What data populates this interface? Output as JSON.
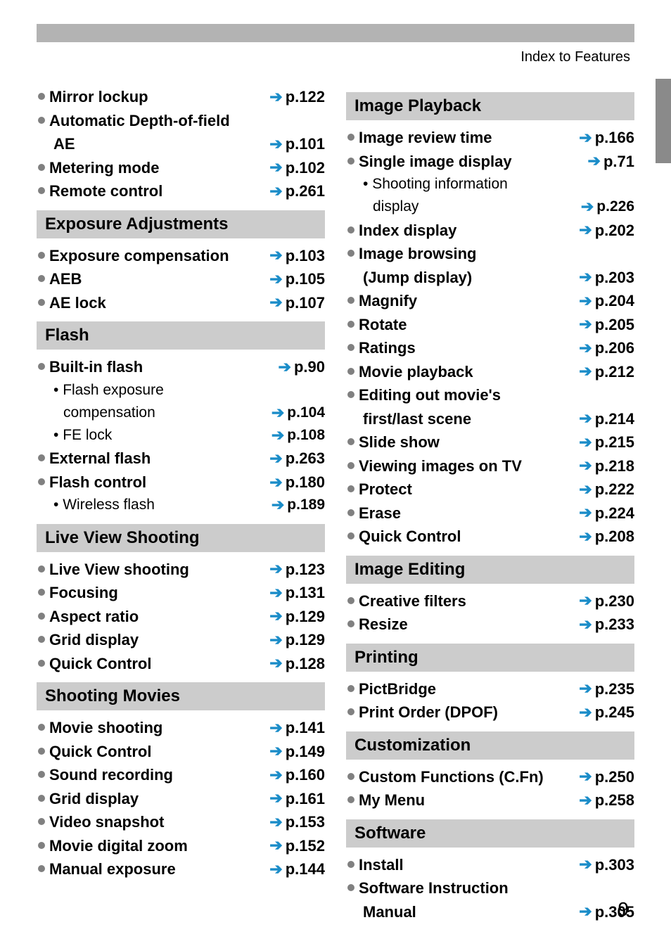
{
  "header": {
    "title": "Index to Features"
  },
  "page_number": "9",
  "colors": {
    "bar": "#b3b3b3",
    "heading_bg": "#cccccc",
    "bullet": "#808080",
    "arrow": "#1a8cc8",
    "side_tab": "#8a8a8a"
  },
  "left_column": [
    {
      "type": "item",
      "label": "Mirror lockup",
      "page": "p.122"
    },
    {
      "type": "item",
      "label": "Automatic Depth-of-field",
      "page": null
    },
    {
      "type": "continue",
      "label": "AE",
      "page": "p.101"
    },
    {
      "type": "item",
      "label": "Metering mode",
      "page": "p.102"
    },
    {
      "type": "item",
      "label": "Remote control",
      "page": "p.261"
    },
    {
      "type": "heading",
      "label": "Exposure Adjustments"
    },
    {
      "type": "item",
      "label": "Exposure compensation",
      "page": "p.103"
    },
    {
      "type": "item",
      "label": "AEB",
      "page": "p.105"
    },
    {
      "type": "item",
      "label": "AE lock",
      "page": "p.107"
    },
    {
      "type": "heading",
      "label": "Flash"
    },
    {
      "type": "item",
      "label": "Built-in flash",
      "page": "p.90"
    },
    {
      "type": "sub",
      "label": "Flash exposure",
      "page": null,
      "dotted": true
    },
    {
      "type": "sub",
      "label": "compensation",
      "page": "p.104",
      "dotted": false,
      "extra_indent": true
    },
    {
      "type": "sub",
      "label": "FE lock",
      "page": "p.108",
      "dotted": true
    },
    {
      "type": "item",
      "label": "External flash",
      "page": "p.263"
    },
    {
      "type": "item",
      "label": "Flash control",
      "page": "p.180"
    },
    {
      "type": "sub",
      "label": "Wireless flash",
      "page": "p.189",
      "dotted": true
    },
    {
      "type": "heading",
      "label": "Live View Shooting"
    },
    {
      "type": "item",
      "label": "Live View shooting",
      "page": "p.123"
    },
    {
      "type": "item",
      "label": "Focusing",
      "page": "p.131"
    },
    {
      "type": "item",
      "label": "Aspect ratio",
      "page": "p.129"
    },
    {
      "type": "item",
      "label": "Grid display",
      "page": "p.129"
    },
    {
      "type": "item",
      "label": "Quick Control",
      "page": "p.128"
    },
    {
      "type": "heading",
      "label": "Shooting Movies"
    },
    {
      "type": "item",
      "label": "Movie shooting",
      "page": "p.141"
    },
    {
      "type": "item",
      "label": "Quick Control",
      "page": "p.149"
    },
    {
      "type": "item",
      "label": "Sound recording",
      "page": "p.160"
    },
    {
      "type": "item",
      "label": "Grid display",
      "page": "p.161"
    },
    {
      "type": "item",
      "label": "Video snapshot",
      "page": "p.153"
    },
    {
      "type": "item",
      "label": "Movie digital zoom",
      "page": "p.152"
    },
    {
      "type": "item",
      "label": "Manual exposure",
      "page": "p.144"
    }
  ],
  "right_column": [
    {
      "type": "heading",
      "label": "Image Playback"
    },
    {
      "type": "item",
      "label": "Image review time",
      "page": "p.166"
    },
    {
      "type": "item",
      "label": "Single image display",
      "page": "p.71"
    },
    {
      "type": "sub",
      "label": "Shooting information",
      "page": null,
      "dotted": true
    },
    {
      "type": "sub",
      "label": "display",
      "page": "p.226",
      "dotted": false,
      "extra_indent": true
    },
    {
      "type": "item",
      "label": "Index display",
      "page": "p.202"
    },
    {
      "type": "item",
      "label": "Image browsing",
      "page": null
    },
    {
      "type": "continue",
      "label": "(Jump display)",
      "page": "p.203"
    },
    {
      "type": "item",
      "label": "Magnify",
      "page": "p.204"
    },
    {
      "type": "item",
      "label": "Rotate",
      "page": "p.205"
    },
    {
      "type": "item",
      "label": "Ratings",
      "page": "p.206"
    },
    {
      "type": "item",
      "label": "Movie playback",
      "page": "p.212"
    },
    {
      "type": "item",
      "label": "Editing out movie's",
      "page": null
    },
    {
      "type": "continue",
      "label": "first/last scene",
      "page": "p.214"
    },
    {
      "type": "item",
      "label": "Slide show",
      "page": "p.215"
    },
    {
      "type": "item",
      "label": "Viewing images on TV",
      "page": "p.218"
    },
    {
      "type": "item",
      "label": "Protect",
      "page": "p.222"
    },
    {
      "type": "item",
      "label": "Erase",
      "page": "p.224"
    },
    {
      "type": "item",
      "label": "Quick Control",
      "page": "p.208"
    },
    {
      "type": "heading",
      "label": "Image Editing"
    },
    {
      "type": "item",
      "label": "Creative filters",
      "page": "p.230"
    },
    {
      "type": "item",
      "label": "Resize",
      "page": "p.233"
    },
    {
      "type": "heading",
      "label": "Printing"
    },
    {
      "type": "item",
      "label": "PictBridge",
      "page": "p.235"
    },
    {
      "type": "item",
      "label": "Print Order (DPOF)",
      "page": "p.245"
    },
    {
      "type": "heading",
      "label": "Customization"
    },
    {
      "type": "item_inline",
      "label": "Custom Functions (C.Fn)",
      "page": "p.250"
    },
    {
      "type": "item",
      "label": "My Menu",
      "page": "p.258"
    },
    {
      "type": "heading",
      "label": "Software"
    },
    {
      "type": "item",
      "label": "Install",
      "page": "p.303"
    },
    {
      "type": "item",
      "label": "Software Instruction",
      "page": null
    },
    {
      "type": "continue",
      "label": "Manual",
      "page": "p.305"
    }
  ]
}
